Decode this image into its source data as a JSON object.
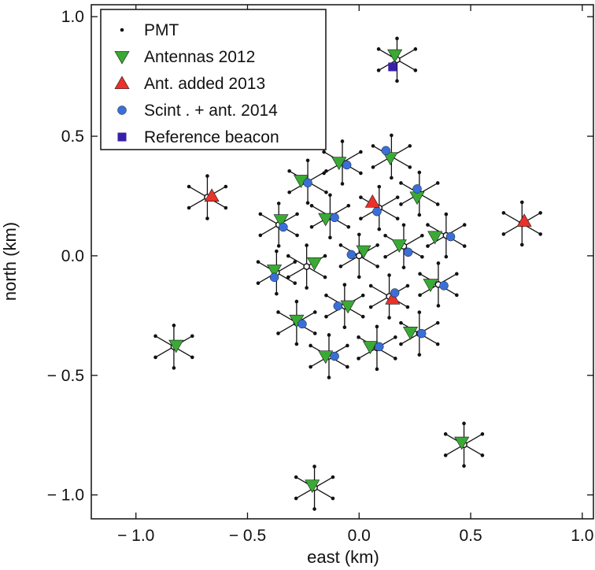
{
  "chart_data": {
    "type": "scatter",
    "title": "",
    "xlabel": "east  (km)",
    "ylabel": "north (km)",
    "xlim": [
      -1.2,
      1.05
    ],
    "ylim": [
      -1.1,
      1.05
    ],
    "xticks": [
      {
        "value": -1.0,
        "label": "− 1.0"
      },
      {
        "value": -0.5,
        "label": "− 0.5"
      },
      {
        "value": 0.0,
        "label": "0.0"
      },
      {
        "value": 0.5,
        "label": "0.5"
      },
      {
        "value": 1.0,
        "label": "1.0"
      }
    ],
    "yticks": [
      {
        "value": 1.0,
        "label": "1.0"
      },
      {
        "value": 0.5,
        "label": "0.5"
      },
      {
        "value": 0.0,
        "label": "0.0"
      },
      {
        "value": -0.5,
        "label": "− 0.5"
      },
      {
        "value": -1.0,
        "label": "− 1.0"
      }
    ],
    "legend": {
      "placement": "top-left",
      "entries": [
        {
          "label": "PMT",
          "marker": "dot",
          "color": "#111111"
        },
        {
          "label": "Antennas  2012",
          "marker": "triangle-down",
          "color": "#3aaa35"
        },
        {
          "label": "Ant. added  2013",
          "marker": "triangle-up",
          "color": "#e8322b"
        },
        {
          "label": "Scint .  +  ant.  2014",
          "marker": "circle",
          "color": "#3a6fd8"
        },
        {
          "label": "Reference  beacon",
          "marker": "square",
          "color": "#3a1fa8"
        }
      ]
    },
    "pmt_stations": [
      {
        "x": 0.17,
        "y": 0.82
      },
      {
        "x": -0.68,
        "y": 0.245
      },
      {
        "x": 0.73,
        "y": 0.135
      },
      {
        "x": -0.83,
        "y": -0.38
      },
      {
        "x": -0.2,
        "y": -0.97
      },
      {
        "x": 0.47,
        "y": -0.79
      },
      {
        "x": 0.0,
        "y": 0.0
      },
      {
        "x": -0.075,
        "y": 0.39
      },
      {
        "x": 0.145,
        "y": 0.415
      },
      {
        "x": -0.23,
        "y": 0.31
      },
      {
        "x": 0.27,
        "y": 0.26
      },
      {
        "x": -0.36,
        "y": 0.13
      },
      {
        "x": -0.13,
        "y": 0.165
      },
      {
        "x": 0.09,
        "y": 0.2
      },
      {
        "x": 0.39,
        "y": 0.085
      },
      {
        "x": -0.235,
        "y": -0.045
      },
      {
        "x": 0.2,
        "y": 0.04
      },
      {
        "x": -0.37,
        "y": -0.07
      },
      {
        "x": -0.065,
        "y": -0.21
      },
      {
        "x": 0.135,
        "y": -0.17
      },
      {
        "x": 0.355,
        "y": -0.12
      },
      {
        "x": -0.28,
        "y": -0.28
      },
      {
        "x": 0.08,
        "y": -0.385
      },
      {
        "x": 0.27,
        "y": -0.325
      },
      {
        "x": -0.135,
        "y": -0.42
      }
    ],
    "series": [
      {
        "name": "Antennas 2012",
        "marker": "triangle-down",
        "color": "#3aaa35",
        "points": [
          [
            0.16,
            0.84
          ],
          [
            -0.82,
            -0.375
          ],
          [
            -0.21,
            -0.96
          ],
          [
            0.46,
            -0.78
          ],
          [
            -0.09,
            0.39
          ],
          [
            0.14,
            0.41
          ],
          [
            -0.26,
            0.315
          ],
          [
            0.26,
            0.245
          ],
          [
            -0.35,
            0.15
          ],
          [
            -0.15,
            0.155
          ],
          [
            0.34,
            0.08
          ],
          [
            0.02,
            0.02
          ],
          [
            -0.2,
            -0.03
          ],
          [
            0.18,
            0.045
          ],
          [
            -0.38,
            -0.06
          ],
          [
            -0.05,
            -0.21
          ],
          [
            0.32,
            -0.12
          ],
          [
            -0.28,
            -0.27
          ],
          [
            0.05,
            -0.38
          ],
          [
            0.23,
            -0.32
          ],
          [
            -0.15,
            -0.42
          ]
        ]
      },
      {
        "name": "Ant. added 2013",
        "marker": "triangle-up",
        "color": "#e8322b",
        "points": [
          [
            -0.66,
            0.25
          ],
          [
            0.74,
            0.145
          ],
          [
            0.06,
            0.225
          ],
          [
            0.15,
            -0.18
          ]
        ]
      },
      {
        "name": "Scint. + ant. 2014",
        "marker": "circle",
        "color": "#3a6fd8",
        "points": [
          [
            -0.055,
            0.38
          ],
          [
            0.12,
            0.44
          ],
          [
            -0.23,
            0.305
          ],
          [
            0.26,
            0.28
          ],
          [
            -0.34,
            0.12
          ],
          [
            -0.11,
            0.16
          ],
          [
            0.08,
            0.185
          ],
          [
            0.41,
            0.08
          ],
          [
            -0.035,
            0.005
          ],
          [
            0.22,
            0.015
          ],
          [
            -0.38,
            -0.09
          ],
          [
            -0.095,
            -0.21
          ],
          [
            0.16,
            -0.155
          ],
          [
            0.38,
            -0.125
          ],
          [
            -0.255,
            -0.285
          ],
          [
            0.09,
            -0.38
          ],
          [
            0.28,
            -0.325
          ],
          [
            -0.11,
            -0.42
          ]
        ]
      },
      {
        "name": "Reference beacon",
        "marker": "square",
        "color": "#3a1fa8",
        "points": [
          [
            0.15,
            0.79
          ]
        ]
      }
    ]
  }
}
